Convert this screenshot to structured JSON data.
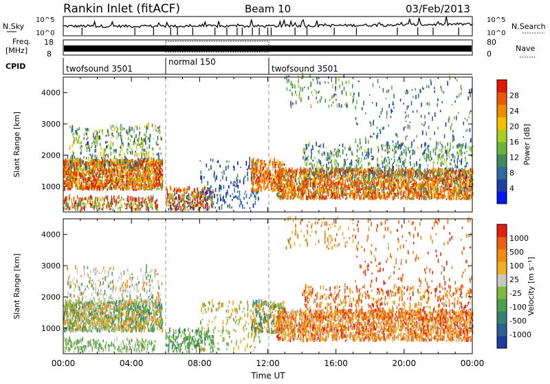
{
  "header": {
    "station": "Rankin Inlet (fitACF)",
    "beam": "Beam 10",
    "date": "03/Feb/2013"
  },
  "panels": {
    "nsky": {
      "label": "N.Sky",
      "ticks_left": [
        "10^5",
        "10^0"
      ],
      "ticks_right": [
        "10^5",
        "10^0"
      ],
      "right_label": "N.Search"
    },
    "freq": {
      "label_line1": "Freq.",
      "label_line2": "[MHz]",
      "ticks_left": [
        "18",
        "8"
      ],
      "ticks_right": [
        "80",
        "0"
      ],
      "right_label": "Nave"
    },
    "cpid": {
      "label": "CPID",
      "segments": [
        "twofsound 3501",
        "normal 150",
        "twofsound 3501"
      ]
    }
  },
  "chart_data": [
    {
      "type": "heatmap",
      "ylabel": "Slant Range [km]",
      "yticks": [
        "1000",
        "2000",
        "3000",
        "4000"
      ],
      "ylim": [
        180,
        4500
      ],
      "xlim": [
        0,
        24
      ],
      "xticks": [
        "00:00",
        "04:00",
        "08:00",
        "12:00",
        "16:00",
        "20:00",
        "00:00"
      ],
      "colorbar": {
        "label": "Power [dB]",
        "ticks": [
          "4",
          "8",
          "12",
          "16",
          "20",
          "24",
          "28"
        ],
        "colors": [
          "#0018f0",
          "#1b40a8",
          "#2f6aa0",
          "#3f8c5a",
          "#6bb23a",
          "#a8d020",
          "#f4c000",
          "#f08c00",
          "#ec5a00",
          "#e41800"
        ]
      }
    },
    {
      "type": "heatmap",
      "ylabel": "Slant Range [km]",
      "yticks": [
        "1000",
        "2000",
        "3000",
        "4000"
      ],
      "ylim": [
        180,
        4500
      ],
      "xlim": [
        0,
        24
      ],
      "xticks": [
        "00:00",
        "04:00",
        "08:00",
        "12:00",
        "16:00",
        "20:00",
        "00:00"
      ],
      "xlabel": "Time UT",
      "colorbar": {
        "label": "Velocity [m s⁻¹]",
        "ticks": [
          "1000",
          "500",
          "100",
          "25",
          "-25",
          "-100",
          "-500",
          "-1000"
        ],
        "colors": [
          "#1e3ca0",
          "#2c6096",
          "#3a8070",
          "#4aa050",
          "#80b840",
          "#c8c8c0",
          "#f0b020",
          "#f08c10",
          "#ec6010",
          "#e42010"
        ]
      }
    }
  ]
}
